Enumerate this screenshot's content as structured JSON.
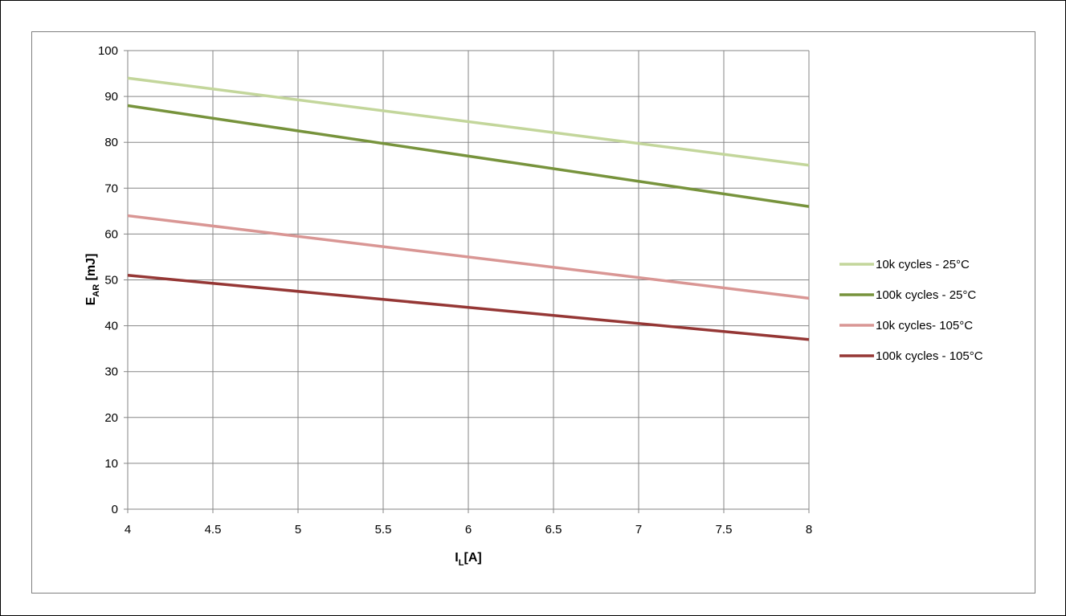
{
  "chart_data": {
    "type": "line",
    "title": "",
    "xlabel": {
      "main": "I",
      "sub": "L",
      "unit": "[A]"
    },
    "ylabel": {
      "main": "E",
      "sub": "AR",
      "unit": " [mJ]"
    },
    "xlim": [
      4,
      8
    ],
    "ylim": [
      0,
      100
    ],
    "x_ticks": [
      4,
      4.5,
      5,
      5.5,
      6,
      6.5,
      7,
      7.5,
      8
    ],
    "x_tick_labels": [
      "4",
      "4.5",
      "5",
      "5.5",
      "6",
      "6.5",
      "7",
      "7.5",
      "8"
    ],
    "y_ticks": [
      0,
      10,
      20,
      30,
      40,
      50,
      60,
      70,
      80,
      90,
      100
    ],
    "y_tick_labels": [
      "0",
      "10",
      "20",
      "30",
      "40",
      "50",
      "60",
      "70",
      "80",
      "90",
      "100"
    ],
    "grid": true,
    "legend_position": "right",
    "series": [
      {
        "name": "10k cycles - 25°C",
        "color": "#c3d69b",
        "x": [
          4,
          8
        ],
        "y": [
          94,
          75
        ]
      },
      {
        "name": "100k cycles - 25°C",
        "color": "#77933c",
        "x": [
          4,
          8
        ],
        "y": [
          88,
          66
        ]
      },
      {
        "name": "10k cycles- 105°C",
        "color": "#d99694",
        "x": [
          4,
          8
        ],
        "y": [
          64,
          46
        ]
      },
      {
        "name": "100k cycles - 105°C",
        "color": "#953735",
        "x": [
          4,
          8
        ],
        "y": [
          51,
          37
        ]
      }
    ]
  }
}
